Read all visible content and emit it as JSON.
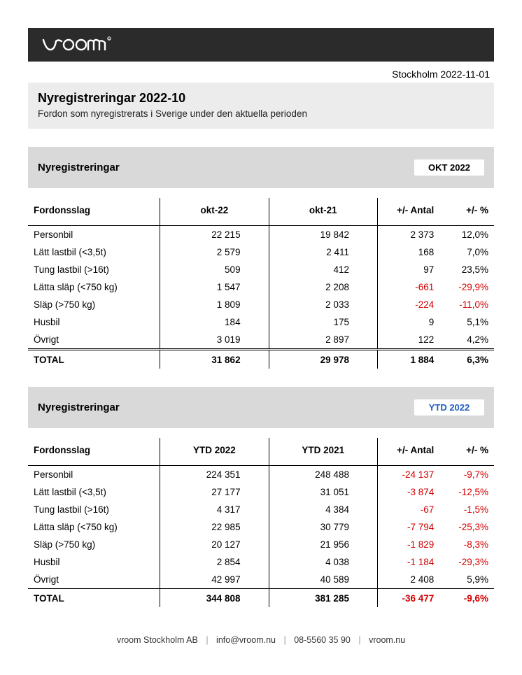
{
  "header": {
    "date_line": "Stockholm 2022-11-01",
    "title": "Nyregistreringar 2022-10",
    "subtitle": "Fordon som nyregistrerats i Sverige under den aktuella perioden"
  },
  "section1": {
    "title": "Nyregistreringar",
    "badge": "OKT 2022",
    "badge_color": "#000000",
    "columns": {
      "cat": "Fordonsslag",
      "a": "okt-22",
      "b": "okt-21",
      "c": "+/- Antal",
      "d": "+/- %"
    },
    "rows": [
      {
        "cat": "Personbil",
        "a": "22 215",
        "b": "19 842",
        "c": "2 373",
        "d": "12,0%",
        "neg": false
      },
      {
        "cat": "Lätt lastbil (<3,5t)",
        "a": "2 579",
        "b": "2 411",
        "c": "168",
        "d": "7,0%",
        "neg": false
      },
      {
        "cat": "Tung lastbil (>16t)",
        "a": "509",
        "b": "412",
        "c": "97",
        "d": "23,5%",
        "neg": false
      },
      {
        "cat": "Lätta släp (<750 kg)",
        "a": "1 547",
        "b": "2 208",
        "c": "-661",
        "d": "-29,9%",
        "neg": true
      },
      {
        "cat": "Släp (>750 kg)",
        "a": "1 809",
        "b": "2 033",
        "c": "-224",
        "d": "-11,0%",
        "neg": true
      },
      {
        "cat": "Husbil",
        "a": "184",
        "b": "175",
        "c": "9",
        "d": "5,1%",
        "neg": false
      },
      {
        "cat": "Övrigt",
        "a": "3 019",
        "b": "2 897",
        "c": "122",
        "d": "4,2%",
        "neg": false
      }
    ],
    "total": {
      "cat": "TOTAL",
      "a": "31 862",
      "b": "29 978",
      "c": "1 884",
      "d": "6,3%",
      "neg": false
    }
  },
  "section2": {
    "title": "Nyregistreringar",
    "badge": "YTD 2022",
    "badge_color": "#1f5fbf",
    "columns": {
      "cat": "Fordonsslag",
      "a": "YTD 2022",
      "b": "YTD 2021",
      "c": "+/- Antal",
      "d": "+/- %"
    },
    "rows": [
      {
        "cat": "Personbil",
        "a": "224 351",
        "b": "248 488",
        "c": "-24 137",
        "d": "-9,7%",
        "neg": true
      },
      {
        "cat": "Lätt lastbil (<3,5t)",
        "a": "27 177",
        "b": "31 051",
        "c": "-3 874",
        "d": "-12,5%",
        "neg": true
      },
      {
        "cat": "Tung lastbil (>16t)",
        "a": "4 317",
        "b": "4 384",
        "c": "-67",
        "d": "-1,5%",
        "neg": true
      },
      {
        "cat": "Lätta släp (<750 kg)",
        "a": "22 985",
        "b": "30 779",
        "c": "-7 794",
        "d": "-25,3%",
        "neg": true
      },
      {
        "cat": "Släp (>750 kg)",
        "a": "20 127",
        "b": "21 956",
        "c": "-1 829",
        "d": "-8,3%",
        "neg": true
      },
      {
        "cat": "Husbil",
        "a": "2 854",
        "b": "4 038",
        "c": "-1 184",
        "d": "-29,3%",
        "neg": true
      },
      {
        "cat": "Övrigt",
        "a": "42 997",
        "b": "40 589",
        "c": "2 408",
        "d": "5,9%",
        "neg": false
      }
    ],
    "total": {
      "cat": "TOTAL",
      "a": "344 808",
      "b": "381 285",
      "c": "-36 477",
      "d": "-9,6%",
      "neg": true
    }
  },
  "footer": {
    "company": "vroom Stockholm AB",
    "email": "info@vroom.nu",
    "phone": "08-5560 35 90",
    "web": "vroom.nu"
  }
}
